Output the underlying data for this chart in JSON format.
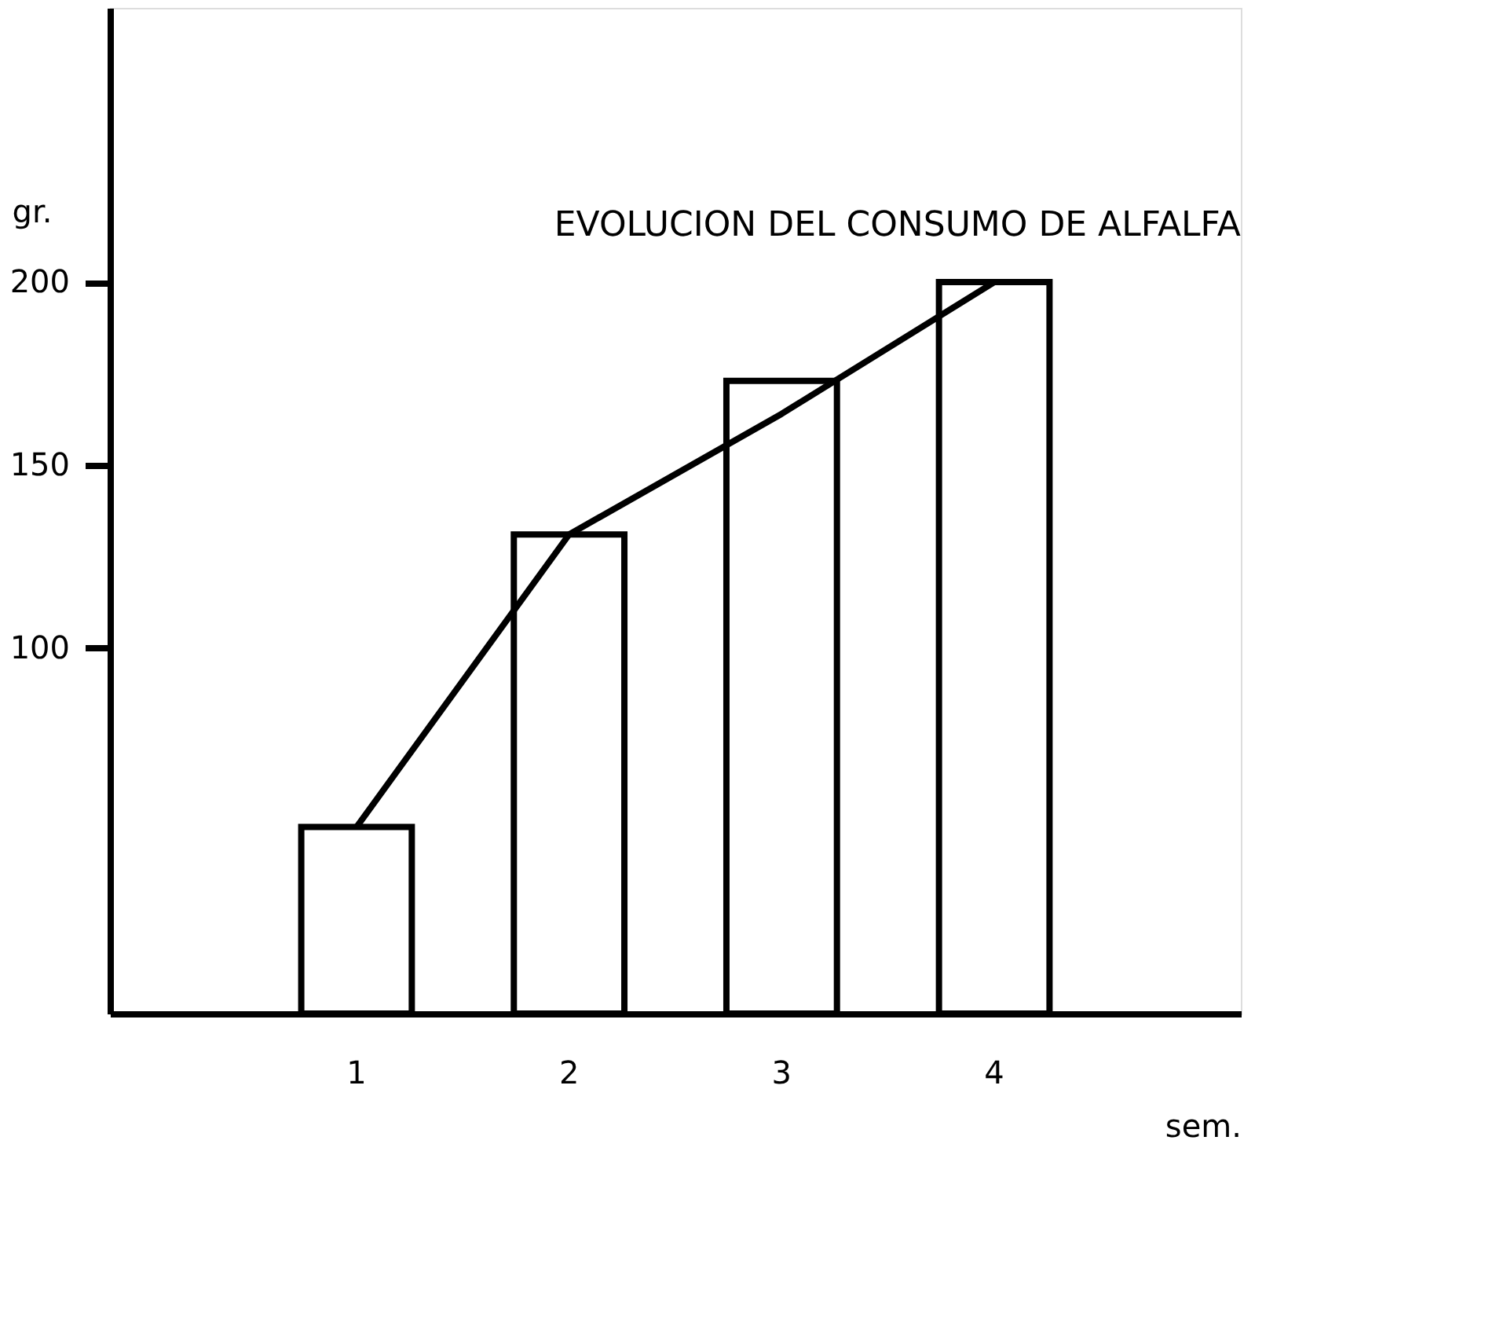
{
  "chart_data": {
    "type": "bar",
    "title": "EVOLUCION DEL CONSUMO DE ALFALFA",
    "xlabel": "sem.",
    "ylabel": "gr.",
    "categories": [
      "1",
      "2",
      "3",
      "4"
    ],
    "series": [
      {
        "color": "#ffffff",
        "values": [
          51,
          131,
          173,
          200
        ]
      },
      {
        "type": "line",
        "color": "#000000",
        "values": [
          51,
          131,
          164,
          200
        ]
      }
    ],
    "ylim": [
      0,
      275
    ],
    "yticks": [
      100,
      150,
      200
    ],
    "grid": false
  }
}
